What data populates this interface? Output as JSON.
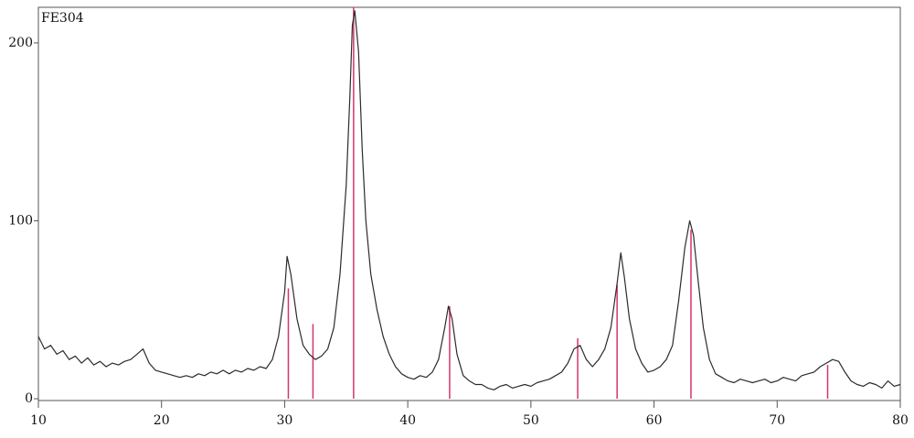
{
  "chart_data": {
    "type": "line",
    "title": "FE304",
    "xlim": [
      10,
      80
    ],
    "xticks": [
      10,
      20,
      30,
      40,
      50,
      60,
      70,
      80
    ],
    "ylim": [
      -1,
      220
    ],
    "yticks": [
      0,
      100,
      200
    ],
    "series": [
      {
        "color": "#2b2b2b",
        "x": [
          10,
          10.5,
          11,
          11.5,
          12,
          12.5,
          13,
          13.5,
          14,
          14.5,
          15,
          15.5,
          16,
          16.5,
          17,
          17.5,
          18,
          18.5,
          19,
          19.5,
          20,
          20.5,
          21,
          21.5,
          22,
          22.5,
          23,
          23.5,
          24,
          24.5,
          25,
          25.5,
          26,
          26.5,
          27,
          27.5,
          28,
          28.5,
          29,
          29.5,
          30,
          30.2,
          30.5,
          31,
          31.5,
          32,
          32.5,
          33,
          33.5,
          34,
          34.5,
          35,
          35.3,
          35.5,
          35.7,
          36,
          36.3,
          36.6,
          37,
          37.5,
          38,
          38.5,
          39,
          39.5,
          40,
          40.5,
          41,
          41.5,
          42,
          42.5,
          43,
          43.3,
          43.6,
          44,
          44.5,
          45,
          45.5,
          46,
          46.5,
          47,
          47.5,
          48,
          48.5,
          49,
          49.5,
          50,
          50.5,
          51,
          51.5,
          52,
          52.5,
          53,
          53.5,
          54,
          54.5,
          55,
          55.5,
          56,
          56.5,
          57,
          57.3,
          57.6,
          58,
          58.5,
          59,
          59.5,
          60,
          60.5,
          61,
          61.5,
          62,
          62.5,
          62.9,
          63.2,
          63.6,
          64,
          64.5,
          65,
          65.5,
          66,
          66.5,
          67,
          67.5,
          68,
          68.5,
          69,
          69.5,
          70,
          70.5,
          71,
          71.5,
          72,
          72.5,
          73,
          73.5,
          74,
          74.5,
          75,
          75.5,
          76,
          76.5,
          77,
          77.5,
          78,
          78.5,
          79,
          79.5,
          80
        ],
        "values": [
          35,
          28,
          30,
          25,
          27,
          22,
          24,
          20,
          23,
          19,
          21,
          18,
          20,
          19,
          21,
          22,
          25,
          28,
          20,
          16,
          15,
          14,
          13,
          12,
          13,
          12,
          14,
          13,
          15,
          14,
          16,
          14,
          16,
          15,
          17,
          16,
          18,
          17,
          22,
          35,
          60,
          80,
          70,
          45,
          30,
          25,
          22,
          24,
          28,
          40,
          70,
          120,
          170,
          210,
          218,
          195,
          140,
          100,
          70,
          50,
          35,
          25,
          18,
          14,
          12,
          11,
          13,
          12,
          15,
          22,
          40,
          52,
          45,
          25,
          13,
          10,
          8,
          8,
          6,
          5,
          7,
          8,
          6,
          7,
          8,
          7,
          9,
          10,
          11,
          13,
          15,
          20,
          28,
          30,
          22,
          18,
          22,
          28,
          40,
          65,
          82,
          68,
          45,
          28,
          20,
          15,
          16,
          18,
          22,
          30,
          55,
          85,
          100,
          92,
          65,
          40,
          22,
          14,
          12,
          10,
          9,
          11,
          10,
          9,
          10,
          11,
          9,
          10,
          12,
          11,
          10,
          13,
          14,
          15,
          18,
          20,
          22,
          21,
          15,
          10,
          8,
          7,
          9,
          8,
          6,
          10,
          7,
          8
        ]
      }
    ],
    "reference_peaks": {
      "color": "#d6336c",
      "x": [
        30.3,
        32.3,
        35.6,
        43.4,
        53.8,
        57.0,
        63.0,
        74.1
      ],
      "values": [
        62,
        42,
        220,
        52,
        34,
        64,
        95,
        19
      ]
    }
  }
}
